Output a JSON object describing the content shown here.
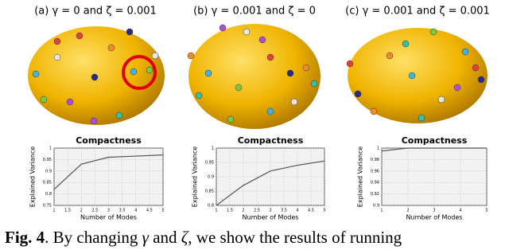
{
  "panels": [
    {
      "label": "(a) γ = 0 and ζ = 0.001"
    },
    {
      "label": "(b) γ = 0.001 and ζ = 0"
    },
    {
      "label": "(c) γ = 0.001 and ζ = 0.001"
    }
  ],
  "chart_data": [
    {
      "type": "line",
      "title": "Compactness",
      "x_label": "Number of Modes",
      "y_label": "Explained Variance",
      "x": [
        1,
        2,
        3,
        4,
        5
      ],
      "values": [
        0.82,
        0.93,
        0.96,
        0.965,
        0.97
      ],
      "color": "#555555",
      "xlim": [
        1,
        5
      ],
      "xticks": [
        1,
        1.5,
        2,
        2.5,
        3,
        3.5,
        4,
        4.5,
        5
      ],
      "ylim": [
        0.75,
        1
      ],
      "yticks": [
        0.75,
        0.8,
        0.85,
        0.9,
        0.95,
        1
      ],
      "grid": true
    },
    {
      "type": "line",
      "title": "Compactness",
      "x_label": "Number of Modes",
      "y_label": "Explained Variance",
      "x": [
        1,
        2,
        3,
        4,
        5
      ],
      "values": [
        0.8,
        0.87,
        0.92,
        0.94,
        0.955
      ],
      "color": "#555555",
      "xlim": [
        1,
        5
      ],
      "xticks": [
        1,
        1.5,
        2,
        2.5,
        3,
        3.5,
        4,
        4.5,
        5
      ],
      "ylim": [
        0.8,
        1
      ],
      "yticks": [
        0.8,
        0.85,
        0.9,
        0.95,
        1
      ],
      "grid": true
    },
    {
      "type": "line",
      "title": "Compactness",
      "x_label": "Number of Modes",
      "y_label": "Explained Variance",
      "x": [
        1,
        2,
        3,
        4,
        5
      ],
      "values": [
        0.995,
        1,
        1,
        1,
        1
      ],
      "color": "#555555",
      "xlim": [
        1,
        5
      ],
      "xticks": [
        1,
        2,
        3,
        4,
        5
      ],
      "ylim": [
        0.9,
        1
      ],
      "yticks": [
        0.9,
        0.92,
        0.94,
        0.96,
        0.98,
        1
      ],
      "grid": true
    }
  ],
  "caption": {
    "label": "Fig. 4",
    "text1": ". By changing ",
    "gamma": "γ",
    "text2": " and ",
    "zeta": "ζ",
    "text3": ", we show the results of running"
  }
}
